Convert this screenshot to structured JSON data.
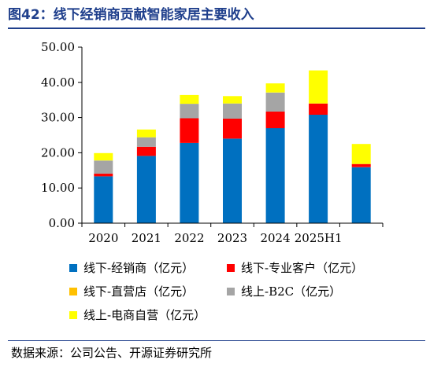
{
  "figure": {
    "title": "图42：线下经销商贡献智能家居主要收入",
    "source": "数据来源：公司公告、开源证券研究所"
  },
  "chart_data": {
    "type": "bar",
    "stacked": true,
    "categories": [
      "2020",
      "2021",
      "2022",
      "2023",
      "2024",
      "2025H1",
      ""
    ],
    "ylim": [
      0,
      50
    ],
    "yticks": [
      "0.00",
      "10.00",
      "20.00",
      "30.00",
      "40.00",
      "50.00"
    ],
    "grid": false,
    "legend_position": "bottom",
    "series": [
      {
        "name": "线下-经销商（亿元）",
        "color": "#0070c0",
        "values": [
          13.3,
          19.1,
          22.8,
          24.0,
          27.0,
          30.8,
          15.9
        ]
      },
      {
        "name": "线下-专业客户（亿元）",
        "color": "#ff0000",
        "values": [
          0.8,
          2.6,
          7.0,
          5.7,
          4.7,
          3.2,
          0.9
        ]
      },
      {
        "name": "线下-直营店（亿元）",
        "color": "#ffc000",
        "values": [
          0.0,
          0.0,
          0.0,
          0.0,
          0.0,
          0.0,
          0.0
        ]
      },
      {
        "name": "线上-B2C（亿元）",
        "color": "#a5a5a5",
        "values": [
          3.7,
          2.7,
          4.1,
          4.3,
          5.4,
          0.0,
          0.0
        ]
      },
      {
        "name": "线上-电商自营（亿元）",
        "color": "#ffff00",
        "values": [
          2.1,
          2.2,
          2.5,
          2.1,
          2.6,
          9.4,
          5.7
        ]
      }
    ]
  }
}
